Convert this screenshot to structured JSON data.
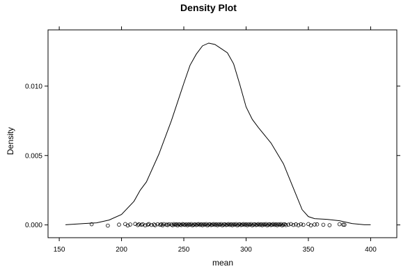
{
  "chart_data": {
    "type": "line",
    "title": "Density Plot",
    "xlabel": "mean",
    "ylabel": "Density",
    "xlim": [
      141,
      421
    ],
    "ylim": [
      -0.00092,
      0.01405
    ],
    "x_ticks": [
      150,
      200,
      250,
      300,
      350,
      400
    ],
    "y_ticks": [
      0.0,
      0.005,
      0.01
    ],
    "x_tick_labels": [
      "150",
      "200",
      "250",
      "300",
      "350",
      "400"
    ],
    "y_tick_labels": [
      "0.000",
      "0.005",
      "0.010"
    ],
    "grid": false,
    "legend": "none",
    "colors": {
      "line": "#000000",
      "points": "#000000",
      "background": "#ffffff"
    },
    "series": [
      {
        "type": "line",
        "x": [
          155,
          170,
          180,
          190,
          200,
          210,
          215,
          220,
          230,
          240,
          250,
          255,
          260,
          265,
          270,
          275,
          280,
          285,
          290,
          295,
          300,
          305,
          310,
          320,
          330,
          340,
          345,
          350,
          355,
          365,
          375,
          385,
          395,
          400
        ],
        "values": [
          1e-05,
          0.0001,
          0.00015,
          0.00035,
          0.00075,
          0.0017,
          0.0025,
          0.0031,
          0.0051,
          0.0075,
          0.0102,
          0.0115,
          0.0123,
          0.0129,
          0.0131,
          0.013,
          0.0127,
          0.0124,
          0.0116,
          0.0101,
          0.0085,
          0.0076,
          0.007,
          0.0059,
          0.0044,
          0.0022,
          0.0011,
          0.0006,
          0.00045,
          0.0004,
          0.0003,
          0.0001,
          1e-05,
          1e-05
        ]
      },
      {
        "type": "scatter",
        "x": [
          176,
          189,
          198,
          203,
          205,
          207,
          211,
          213,
          214,
          216,
          217,
          219,
          221,
          222,
          224,
          226,
          227,
          229,
          231,
          232,
          233,
          234,
          236,
          237,
          238,
          240,
          241,
          242,
          243,
          244,
          245,
          246,
          247,
          248,
          249,
          250,
          251,
          252,
          253,
          254,
          255,
          256,
          257,
          258,
          259,
          260,
          261,
          262,
          263,
          264,
          265,
          266,
          267,
          268,
          269,
          270,
          271,
          272,
          273,
          274,
          275,
          276,
          277,
          278,
          279,
          280,
          281,
          282,
          283,
          284,
          285,
          286,
          287,
          288,
          289,
          290,
          291,
          292,
          293,
          294,
          295,
          296,
          297,
          298,
          299,
          300,
          301,
          302,
          303,
          304,
          305,
          306,
          307,
          308,
          309,
          310,
          311,
          312,
          313,
          314,
          315,
          316,
          317,
          318,
          319,
          320,
          321,
          322,
          323,
          324,
          325,
          326,
          327,
          328,
          329,
          330,
          331,
          332,
          334,
          336,
          338,
          340,
          342,
          344,
          346,
          350,
          352,
          355,
          357,
          362,
          367,
          375,
          378,
          379
        ],
        "values": [
          5e-05,
          -5e-05,
          2e-05,
          6e-05,
          -4e-05,
          3e-05,
          7e-05,
          -1e-05,
          4e-05,
          1e-05,
          5e-05,
          -3e-05,
          2e-05,
          6e-05,
          0.0,
          3e-05,
          -2e-05,
          5e-05,
          1e-05,
          4e-05,
          -3e-05,
          6e-05,
          2e-05,
          -1e-05,
          5e-05,
          3e-05,
          -2e-05,
          6e-05,
          1e-05,
          4e-05,
          -3e-05,
          5e-05,
          2e-05,
          -1e-05,
          6e-05,
          3e-05,
          0.0,
          5e-05,
          -2e-05,
          4e-05,
          1e-05,
          6e-05,
          -3e-05,
          2e-05,
          5e-05,
          -1e-05,
          3e-05,
          6e-05,
          0.0,
          4e-05,
          -2e-05,
          5e-05,
          1e-05,
          6e-05,
          -3e-05,
          3e-05,
          5e-05,
          -1e-05,
          2e-05,
          6e-05,
          0.0,
          4e-05,
          -2e-05,
          5e-05,
          1e-05,
          6e-05,
          -3e-05,
          3e-05,
          5e-05,
          -1e-05,
          2e-05,
          6e-05,
          0.0,
          4e-05,
          -2e-05,
          5e-05,
          1e-05,
          6e-05,
          -3e-05,
          3e-05,
          5e-05,
          -1e-05,
          2e-05,
          6e-05,
          0.0,
          4e-05,
          -2e-05,
          5e-05,
          1e-05,
          6e-05,
          -3e-05,
          3e-05,
          5e-05,
          -1e-05,
          2e-05,
          6e-05,
          0.0,
          4e-05,
          -2e-05,
          5e-05,
          1e-05,
          6e-05,
          -3e-05,
          3e-05,
          5e-05,
          -1e-05,
          2e-05,
          6e-05,
          0.0,
          4e-05,
          -2e-05,
          5e-05,
          1e-05,
          6e-05,
          -3e-05,
          3e-05,
          5e-05,
          -1e-05,
          2e-05,
          6e-05,
          0.0,
          4e-05,
          -2e-05,
          5e-05,
          1e-05,
          6e-05,
          -3e-05,
          3e-05,
          4e-05,
          1e-05,
          -2e-05,
          5e-05,
          2e-05,
          1e-05
        ]
      }
    ]
  }
}
